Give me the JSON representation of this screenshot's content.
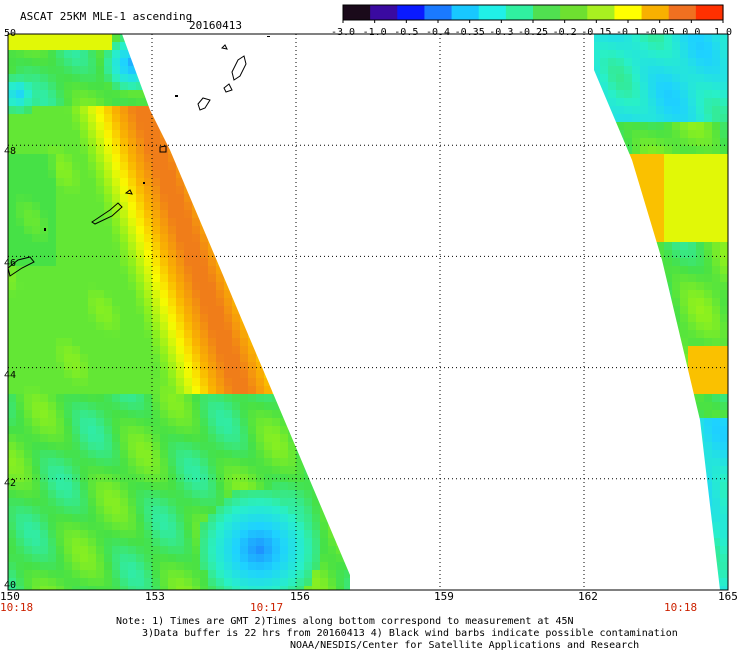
{
  "header": {
    "title": "ASCAT 25KM MLE-1 ascending",
    "date": "20160413"
  },
  "colorbar": {
    "tick_labels": [
      "-3.0",
      "-1.0",
      "-0.5",
      "-0.4",
      "-0.35",
      "-0.3",
      "-0.25",
      "-0.2",
      "-0.15",
      "-0.1",
      "-0.05",
      "0.0",
      "1.0"
    ]
  },
  "axes": {
    "lat_labels": [
      "50",
      "48",
      "46",
      "44",
      "42",
      "40"
    ],
    "lon_labels": [
      "150",
      "153",
      "156",
      "159",
      "162",
      "165"
    ],
    "lat_values": [
      50,
      48,
      46,
      44,
      42,
      40
    ],
    "lon_values": [
      150,
      153,
      156,
      159,
      162,
      165
    ]
  },
  "times": {
    "left": "10:18",
    "middle": "10:17",
    "right": "10:18"
  },
  "notes": {
    "line1": "Note: 1) Times are GMT 2)Times along bottom correspond to measurement at 45N",
    "line2": "3)Data buffer is 22 hrs from 20160413 4) Black wind barbs indicate possible contamination",
    "line3": "NOAA/NESDIS/Center for Satellite Applications and Research"
  },
  "colors": {
    "scale": [
      "#1a0a1a",
      "#3a0aa0",
      "#0a1aff",
      "#1a7aff",
      "#18c8ff",
      "#20f0e8",
      "#30f0a0",
      "#50e050",
      "#6ee030",
      "#a8f020",
      "#ffff00",
      "#f8b000",
      "#f07020",
      "#ff3000"
    ],
    "orange": "#f07a18",
    "coast": "#000000",
    "grid": "#000000"
  }
}
